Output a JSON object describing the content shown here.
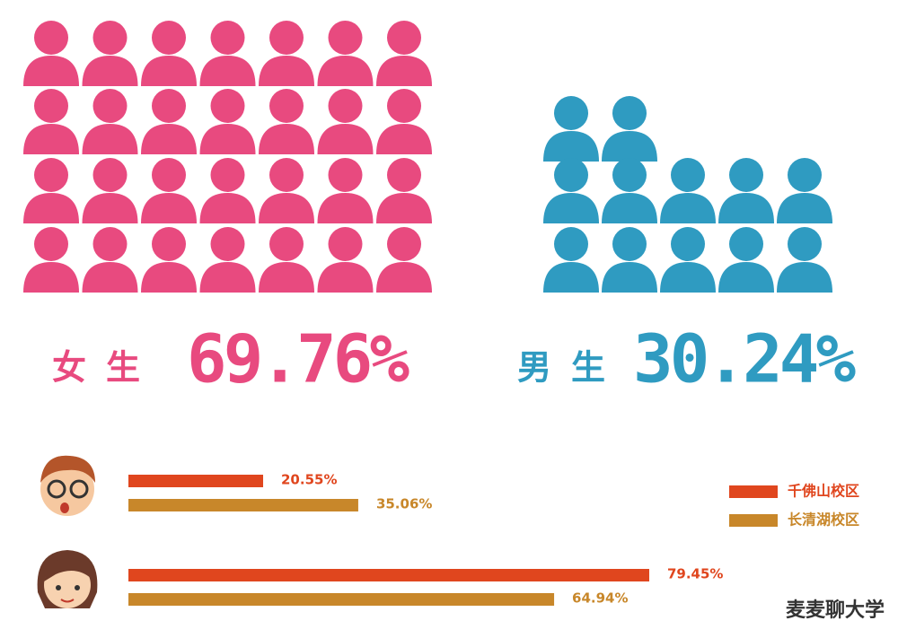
{
  "chart_data": [
    {
      "type": "pictogram",
      "categories": [
        "女生",
        "男生"
      ],
      "values": [
        69.76,
        30.24
      ],
      "value_labels": [
        "69.76%",
        "30.24%"
      ],
      "icons": [
        28,
        12
      ],
      "colors": [
        "#e84a7f",
        "#2f9bc1"
      ]
    },
    {
      "type": "hbar",
      "categories": [
        null,
        null
      ],
      "series": [
        {
          "name": "千佛山校区",
          "color": "#e0461e",
          "values": [
            20.55,
            79.45
          ],
          "value_labels": [
            "20.55%",
            "79.45%"
          ]
        },
        {
          "name": "长清湖校区",
          "color": "#c8872a",
          "values": [
            35.06,
            64.94
          ],
          "value_labels": [
            "35.06%",
            "64.94%"
          ]
        }
      ]
    }
  ],
  "watermark": "麦麦聊大学"
}
